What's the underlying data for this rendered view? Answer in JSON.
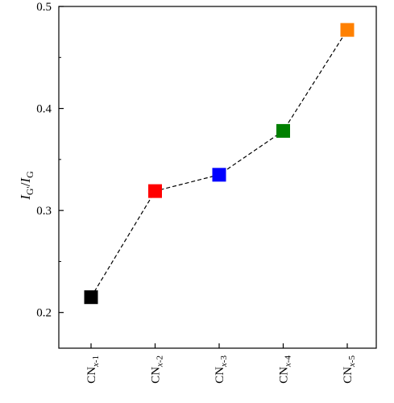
{
  "chart_data": {
    "type": "scatter",
    "title": "",
    "xlabel": "",
    "ylabel": {
      "var1": "I",
      "sub1": "G'",
      "slash": "/",
      "var2": "I",
      "sub2": "G"
    },
    "categories": [
      {
        "base": "CN",
        "sub": "x-1"
      },
      {
        "base": "CN",
        "sub": "x-2"
      },
      {
        "base": "CN",
        "sub": "x-3"
      },
      {
        "base": "CN",
        "sub": "x-4"
      },
      {
        "base": "CN",
        "sub": "x-5"
      }
    ],
    "values": [
      0.215,
      0.319,
      0.335,
      0.378,
      0.477
    ],
    "colors": [
      "#000000",
      "#ff0000",
      "#0000ff",
      "#008000",
      "#ff8000"
    ],
    "ylim": [
      0.165,
      0.5
    ],
    "yticks": [
      "0.2",
      "0.3",
      "0.4",
      "0.5"
    ],
    "line_style": "dashed",
    "marker": "square",
    "grid": false,
    "legend": "none"
  }
}
